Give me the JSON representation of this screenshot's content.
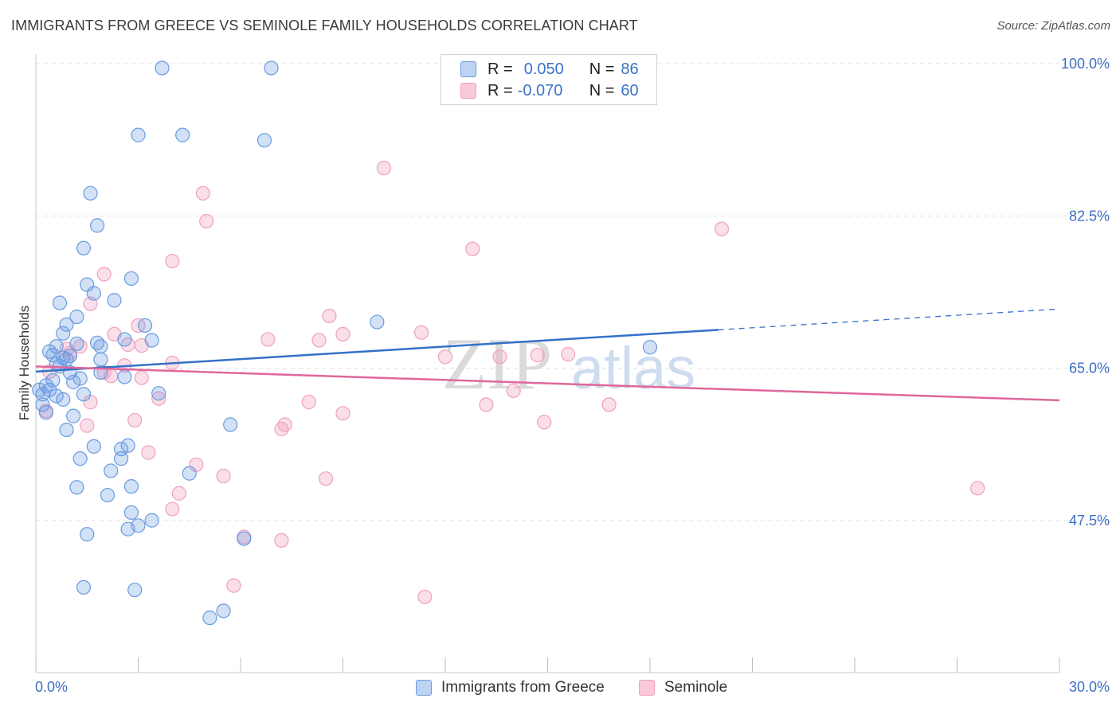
{
  "title": "IMMIGRANTS FROM GREECE VS SEMINOLE FAMILY HOUSEHOLDS CORRELATION CHART",
  "source": "Source: ZipAtlas.com",
  "watermark": {
    "zip": "ZIP",
    "atlas": "atlas"
  },
  "legend": {
    "rows": [
      {
        "r_label": "R =",
        "r_value": "0.050",
        "n_label": "N =",
        "n_value": "86"
      },
      {
        "r_label": "R =",
        "r_value": "-0.070",
        "n_label": "N =",
        "n_value": "60"
      }
    ]
  },
  "bottom_legend": [
    "Immigrants from Greece",
    "Seminole"
  ],
  "chart_data": {
    "type": "scatter",
    "title": "IMMIGRANTS FROM GREECE VS SEMINOLE FAMILY HOUSEHOLDS CORRELATION CHART",
    "xlabel": "",
    "ylabel": "Family Households",
    "xlim": [
      0,
      30
    ],
    "ylim": [
      30,
      100
    ],
    "x_tick_labels": [
      "0.0%",
      "30.0%"
    ],
    "y_ticks": [
      47.5,
      65.0,
      82.5,
      100.0
    ],
    "y_tick_labels": [
      "47.5%",
      "65.0%",
      "82.5%",
      "100.0%"
    ],
    "grid": true,
    "colors": {
      "greece": "#6a9be0",
      "seminole": "#f0a0bf",
      "greece_line": "#3371c9",
      "seminole_line": "#e0679a"
    },
    "series": [
      {
        "name": "Immigrants from Greece",
        "R": 0.05,
        "N": 86,
        "trend": {
          "x0": 0,
          "y0": 64.6,
          "x1": 20,
          "y1": 69.4,
          "dashed_to_x": 30,
          "dashed_to_y": 71.8
        },
        "points": [
          [
            3.7,
            99.5
          ],
          [
            6.9,
            99.5
          ],
          [
            3.0,
            91.8
          ],
          [
            4.3,
            91.8
          ],
          [
            6.7,
            91.2
          ],
          [
            1.6,
            85.1
          ],
          [
            1.8,
            81.4
          ],
          [
            1.4,
            78.8
          ],
          [
            2.8,
            75.3
          ],
          [
            1.5,
            74.6
          ],
          [
            1.7,
            73.6
          ],
          [
            2.3,
            72.8
          ],
          [
            0.7,
            72.5
          ],
          [
            1.2,
            70.9
          ],
          [
            0.9,
            70.0
          ],
          [
            3.2,
            69.9
          ],
          [
            10.0,
            70.3
          ],
          [
            0.8,
            69.0
          ],
          [
            2.6,
            68.3
          ],
          [
            3.4,
            68.2
          ],
          [
            1.8,
            67.9
          ],
          [
            1.2,
            67.8
          ],
          [
            1.9,
            67.5
          ],
          [
            0.6,
            67.5
          ],
          [
            0.4,
            66.9
          ],
          [
            0.5,
            66.5
          ],
          [
            1.0,
            66.4
          ],
          [
            0.8,
            66.2
          ],
          [
            1.9,
            66.0
          ],
          [
            0.6,
            65.5
          ],
          [
            0.9,
            66.0
          ],
          [
            0.7,
            65.2
          ],
          [
            1.9,
            64.5
          ],
          [
            2.6,
            64.0
          ],
          [
            1.3,
            63.8
          ],
          [
            0.5,
            63.6
          ],
          [
            1.1,
            63.4
          ],
          [
            0.3,
            63.0
          ],
          [
            0.4,
            62.5
          ],
          [
            1.4,
            62.0
          ],
          [
            3.6,
            62.1
          ],
          [
            0.2,
            62.0
          ],
          [
            0.6,
            61.8
          ],
          [
            0.8,
            61.4
          ],
          [
            0.2,
            60.8
          ],
          [
            0.3,
            59.9
          ],
          [
            1.1,
            59.5
          ],
          [
            0.9,
            57.9
          ],
          [
            5.7,
            58.5
          ],
          [
            1.7,
            56.0
          ],
          [
            2.7,
            56.1
          ],
          [
            2.5,
            55.7
          ],
          [
            1.3,
            54.6
          ],
          [
            2.5,
            54.6
          ],
          [
            2.2,
            53.2
          ],
          [
            4.5,
            52.9
          ],
          [
            2.8,
            51.4
          ],
          [
            1.2,
            51.3
          ],
          [
            2.1,
            50.4
          ],
          [
            2.8,
            48.4
          ],
          [
            3.4,
            47.5
          ],
          [
            3.0,
            46.9
          ],
          [
            2.7,
            46.5
          ],
          [
            1.5,
            45.9
          ],
          [
            6.1,
            45.4
          ],
          [
            1.4,
            39.8
          ],
          [
            2.9,
            39.5
          ],
          [
            5.5,
            37.1
          ],
          [
            5.1,
            36.3
          ],
          [
            18.0,
            67.4
          ],
          [
            0.1,
            62.5
          ],
          [
            1.0,
            64.5
          ]
        ]
      },
      {
        "name": "Seminole",
        "R": -0.07,
        "N": 60,
        "trend": {
          "x0": 0,
          "y0": 65.2,
          "x1": 30,
          "y1": 61.3
        },
        "points": [
          [
            10.2,
            88.0
          ],
          [
            4.9,
            85.1
          ],
          [
            5.0,
            81.9
          ],
          [
            20.1,
            81.0
          ],
          [
            12.8,
            78.7
          ],
          [
            4.0,
            77.3
          ],
          [
            2.0,
            75.8
          ],
          [
            1.6,
            72.4
          ],
          [
            8.6,
            71.0
          ],
          [
            9.0,
            68.9
          ],
          [
            3.0,
            69.9
          ],
          [
            11.3,
            69.1
          ],
          [
            2.3,
            68.9
          ],
          [
            6.8,
            68.3
          ],
          [
            8.3,
            68.2
          ],
          [
            2.7,
            67.7
          ],
          [
            3.1,
            67.6
          ],
          [
            1.3,
            67.5
          ],
          [
            0.9,
            67.2
          ],
          [
            1.0,
            66.7
          ],
          [
            15.6,
            66.6
          ],
          [
            14.7,
            66.5
          ],
          [
            12.0,
            66.3
          ],
          [
            13.6,
            66.3
          ],
          [
            4.0,
            65.6
          ],
          [
            2.6,
            65.3
          ],
          [
            2.0,
            64.5
          ],
          [
            0.4,
            64.6
          ],
          [
            2.2,
            64.1
          ],
          [
            3.1,
            63.9
          ],
          [
            14.0,
            62.4
          ],
          [
            3.6,
            61.5
          ],
          [
            8.0,
            61.1
          ],
          [
            13.2,
            60.8
          ],
          [
            16.8,
            60.8
          ],
          [
            9.0,
            59.8
          ],
          [
            14.9,
            58.8
          ],
          [
            2.9,
            59.0
          ],
          [
            7.3,
            58.5
          ],
          [
            7.2,
            58.0
          ],
          [
            1.5,
            58.4
          ],
          [
            3.3,
            55.3
          ],
          [
            4.7,
            53.9
          ],
          [
            5.5,
            52.6
          ],
          [
            8.5,
            52.3
          ],
          [
            27.6,
            51.2
          ],
          [
            4.2,
            50.6
          ],
          [
            4.0,
            48.8
          ],
          [
            6.1,
            45.6
          ],
          [
            7.2,
            45.2
          ],
          [
            5.8,
            40.0
          ],
          [
            11.4,
            38.7
          ],
          [
            1.6,
            61.1
          ],
          [
            0.3,
            60.1
          ]
        ]
      }
    ]
  }
}
